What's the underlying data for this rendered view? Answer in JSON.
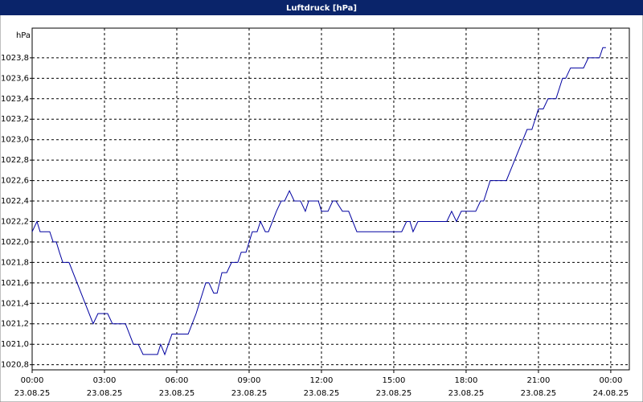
{
  "chart_data": {
    "type": "line",
    "title": "Luftdruck [hPa]",
    "y_label": "hPa",
    "xlim": [
      0,
      24.77
    ],
    "ylim": [
      1020.75,
      1024.09
    ],
    "xticks": [
      {
        "value": 0,
        "label": "00:00\n23.08.25"
      },
      {
        "value": 3,
        "label": "03:00\n23.08.25"
      },
      {
        "value": 6,
        "label": "06:00\n23.08.25"
      },
      {
        "value": 9,
        "label": "09:00\n23.08.25"
      },
      {
        "value": 12,
        "label": "12:00\n23.08.25"
      },
      {
        "value": 15,
        "label": "15:00\n23.08.25"
      },
      {
        "value": 18,
        "label": "18:00\n23.08.25"
      },
      {
        "value": 21,
        "label": "21:00\n23.08.25"
      },
      {
        "value": 24,
        "label": "00:00\n24.08.25"
      }
    ],
    "yticks": [
      {
        "value": 1020.8,
        "label": "1020,8"
      },
      {
        "value": 1021.0,
        "label": "1021,0"
      },
      {
        "value": 1021.2,
        "label": "1021,2"
      },
      {
        "value": 1021.4,
        "label": "1021,4"
      },
      {
        "value": 1021.6,
        "label": "1021,6"
      },
      {
        "value": 1021.8,
        "label": "1021,8"
      },
      {
        "value": 1022.0,
        "label": "1022,0"
      },
      {
        "value": 1022.2,
        "label": "1022,2"
      },
      {
        "value": 1022.4,
        "label": "1022,4"
      },
      {
        "value": 1022.6,
        "label": "1022,6"
      },
      {
        "value": 1022.8,
        "label": "1022,8"
      },
      {
        "value": 1023.0,
        "label": "1023,0"
      },
      {
        "value": 1023.2,
        "label": "1023,2"
      },
      {
        "value": 1023.4,
        "label": "1023,4"
      },
      {
        "value": 1023.6,
        "label": "1023,6"
      },
      {
        "value": 1023.8,
        "label": "1023,8"
      }
    ],
    "grid": true,
    "color": "#0000a0",
    "x": [
      0,
      0.2,
      0.33,
      0.73,
      0.87,
      1.0,
      1.13,
      1.27,
      1.53,
      2.53,
      2.73,
      3.13,
      3.33,
      3.87,
      4.2,
      4.4,
      4.6,
      5.2,
      5.33,
      5.5,
      5.8,
      6.47,
      6.8,
      7.2,
      7.33,
      7.53,
      7.67,
      7.87,
      8.07,
      8.27,
      8.53,
      8.67,
      8.87,
      9.13,
      9.33,
      9.47,
      9.67,
      9.8,
      10.13,
      10.33,
      10.47,
      10.67,
      10.87,
      11.13,
      11.33,
      11.47,
      11.87,
      12.0,
      12.27,
      12.47,
      12.6,
      12.87,
      13.13,
      13.47,
      15.33,
      15.53,
      15.67,
      15.8,
      16.0,
      17.2,
      17.4,
      17.6,
      17.8,
      18.4,
      18.6,
      18.73,
      19.0,
      19.67,
      20.53,
      20.73,
      21.0,
      21.2,
      21.4,
      21.73,
      22.0,
      22.13,
      22.33,
      22.87,
      23.07,
      23.53,
      23.67,
      23.8
    ],
    "values": [
      1022.1,
      1022.2,
      1022.1,
      1022.1,
      1022.0,
      1022.0,
      1021.9,
      1021.8,
      1021.8,
      1021.2,
      1021.3,
      1021.3,
      1021.2,
      1021.2,
      1021.0,
      1021.0,
      1020.9,
      1020.9,
      1021.0,
      1020.9,
      1021.1,
      1021.1,
      1021.3,
      1021.6,
      1021.6,
      1021.5,
      1021.5,
      1021.7,
      1021.7,
      1021.8,
      1021.8,
      1021.9,
      1021.9,
      1022.1,
      1022.1,
      1022.2,
      1022.1,
      1022.1,
      1022.3,
      1022.4,
      1022.4,
      1022.5,
      1022.4,
      1022.4,
      1022.3,
      1022.4,
      1022.4,
      1022.3,
      1022.3,
      1022.4,
      1022.4,
      1022.3,
      1022.3,
      1022.1,
      1022.1,
      1022.2,
      1022.2,
      1022.1,
      1022.2,
      1022.2,
      1022.3,
      1022.2,
      1022.3,
      1022.3,
      1022.4,
      1022.4,
      1022.6,
      1022.6,
      1023.1,
      1023.1,
      1023.3,
      1023.3,
      1023.4,
      1023.4,
      1023.6,
      1023.6,
      1023.7,
      1023.7,
      1023.8,
      1023.8,
      1023.9,
      1023.9
    ]
  }
}
